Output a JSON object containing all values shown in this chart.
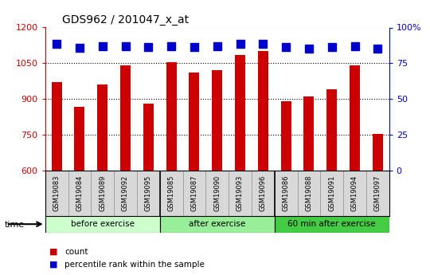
{
  "title": "GDS962 / 201047_x_at",
  "samples": [
    "GSM19083",
    "GSM19084",
    "GSM19089",
    "GSM19092",
    "GSM19095",
    "GSM19085",
    "GSM19087",
    "GSM19090",
    "GSM19093",
    "GSM19096",
    "GSM19086",
    "GSM19088",
    "GSM19091",
    "GSM19094",
    "GSM19097"
  ],
  "counts": [
    970,
    868,
    960,
    1040,
    882,
    1055,
    1010,
    1020,
    1085,
    1100,
    890,
    912,
    940,
    1042,
    755
  ],
  "percentile_y": [
    1130,
    1115,
    1120,
    1120,
    1118,
    1122,
    1118,
    1120,
    1130,
    1132,
    1118,
    1112,
    1118,
    1122,
    1110
  ],
  "groups": [
    {
      "label": "before exercise",
      "start": 0,
      "end": 5,
      "color": "#ccffcc"
    },
    {
      "label": "after exercise",
      "start": 5,
      "end": 10,
      "color": "#99ee99"
    },
    {
      "label": "60 min after exercise",
      "start": 10,
      "end": 15,
      "color": "#44cc44"
    }
  ],
  "ylim_left": [
    600,
    1200
  ],
  "ylim_right": [
    0,
    100
  ],
  "yticks_left": [
    600,
    750,
    900,
    1050,
    1200
  ],
  "yticks_right": [
    0,
    25,
    50,
    75,
    100
  ],
  "ytick_right_labels": [
    "0",
    "25",
    "50",
    "75",
    "100%"
  ],
  "bar_color": "#cc0000",
  "dot_color": "#0000cc",
  "axis_color_left": "#cc0000",
  "axis_color_right": "#0000cc",
  "bar_width": 0.45,
  "dot_marker_size": 7,
  "label_bg_color": "#d8d8d8",
  "label_border_color": "#888888"
}
